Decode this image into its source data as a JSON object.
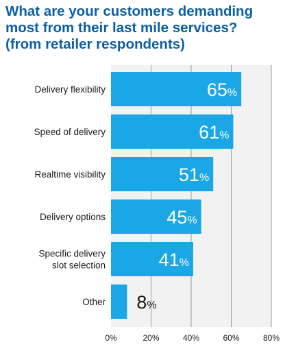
{
  "header": {
    "title_lines": [
      "What are your customers demanding",
      "most from their last mile services?",
      "(from retailer respondents)"
    ]
  },
  "colors": {
    "bar": "#1ba7e6",
    "plot_background": "#f2f2f2",
    "title": "#0b5fa5",
    "gridline": "#9a9a9a"
  },
  "chart_data": {
    "type": "bar",
    "orientation": "horizontal",
    "categories": [
      [
        "Delivery flexibility"
      ],
      [
        "Speed of delivery"
      ],
      [
        "Realtime visibility"
      ],
      [
        "Delivery options"
      ],
      [
        "Specific delivery",
        "slot selection"
      ],
      [
        "Other"
      ]
    ],
    "values": [
      65,
      61,
      51,
      45,
      41,
      8
    ],
    "value_suffix": "%",
    "xlim": [
      0,
      80
    ],
    "xticks": [
      0,
      20,
      40,
      60,
      80
    ],
    "xtick_labels": [
      "0%",
      "20%",
      "40%",
      "60%",
      "80%"
    ],
    "grid": true
  }
}
